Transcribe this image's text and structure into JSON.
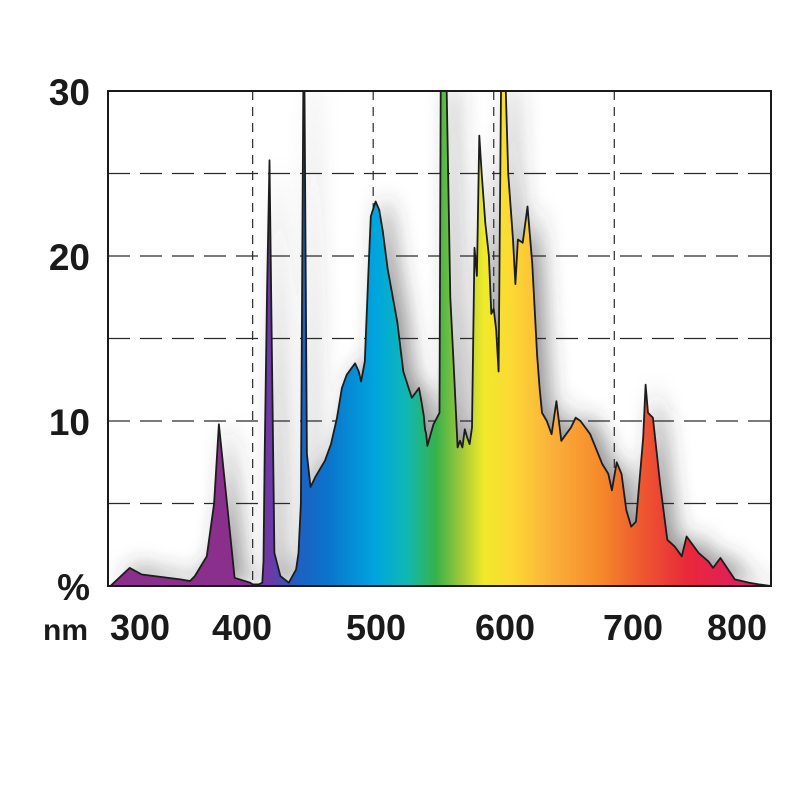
{
  "chart_data": {
    "type": "area",
    "title": "",
    "xlabel": "nm",
    "ylabel": "%",
    "xlim": [
      280,
      830
    ],
    "ylim": [
      0,
      30
    ],
    "grid": true,
    "x_ticks": [
      300,
      400,
      500,
      600,
      700,
      800
    ],
    "y_ticks": [
      10,
      20,
      30
    ],
    "x_gridlines": [
      400,
      500,
      600,
      700
    ],
    "y_gridlines": [
      5,
      10,
      15,
      20,
      25
    ],
    "series": [
      {
        "x": [
          282,
          298,
          308,
          340,
          348,
          352,
          362,
          368,
          372,
          385,
          398,
          400,
          402,
          405,
          408,
          409,
          410,
          412,
          414,
          418,
          423,
          430,
          436,
          438,
          440,
          441,
          442,
          443,
          445,
          448,
          452,
          460,
          465,
          470,
          474,
          478,
          482,
          485,
          488,
          490,
          493,
          496,
          498,
          502,
          505,
          508,
          512,
          520,
          525,
          532,
          538,
          540,
          542,
          543,
          544,
          545,
          550,
          555,
          556,
          558,
          561,
          564,
          567,
          570,
          572,
          574,
          576,
          578,
          580,
          582,
          584,
          586,
          588,
          590,
          593,
          596,
          598,
          600,
          602,
          604,
          606,
          608,
          610,
          612,
          614,
          616,
          618,
          620,
          624,
          628,
          632,
          636,
          638,
          640,
          644,
          648,
          652,
          656,
          660,
          664,
          668,
          672,
          676,
          680,
          690,
          695,
          698,
          702,
          706,
          710,
          714,
          718,
          722,
          724,
          726,
          728,
          732,
          738,
          744,
          750,
          756,
          760,
          770,
          778,
          782,
          788,
          800,
          812,
          820,
          830
        ],
        "values": [
          0,
          1.1,
          0.7,
          0.4,
          0.3,
          0.6,
          1.8,
          5.0,
          9.8,
          0.5,
          0.2,
          0.1,
          0.1,
          0.1,
          0.2,
          1.5,
          8.0,
          18.0,
          25.8,
          2.0,
          0.6,
          0.2,
          1.0,
          2.0,
          5.0,
          18.0,
          30.0,
          30.0,
          8.0,
          6.0,
          6.6,
          7.6,
          8.6,
          10.2,
          12.0,
          12.8,
          13.2,
          13.5,
          13.0,
          12.4,
          13.6,
          19.0,
          22.4,
          23.3,
          22.8,
          21.5,
          19.2,
          16.0,
          13.0,
          11.4,
          12.0,
          11.2,
          10.3,
          9.5,
          9.2,
          8.5,
          9.8,
          10.5,
          30.0,
          30.0,
          30.0,
          17.5,
          13.0,
          8.4,
          8.8,
          8.4,
          9.5,
          9.0,
          8.6,
          9.6,
          20.5,
          18.8,
          27.3,
          25.0,
          22.0,
          20.0,
          16.5,
          16.8,
          15.5,
          13.0,
          30.0,
          30.0,
          30.0,
          25.0,
          23.0,
          21.0,
          18.3,
          21.0,
          20.8,
          23.0,
          19.5,
          14.0,
          12.0,
          10.5,
          10.0,
          9.2,
          11.2,
          8.8,
          9.2,
          9.6,
          10.2,
          10.0,
          9.6,
          9.2,
          7.4,
          6.8,
          5.8,
          7.5,
          6.8,
          4.6,
          3.6,
          3.9,
          7.3,
          9.0,
          12.2,
          10.5,
          10.2,
          6.2,
          2.8,
          2.4,
          1.8,
          3.0,
          2.0,
          1.5,
          1.1,
          1.7,
          0.4,
          0.2,
          0.1,
          0
        ]
      }
    ]
  }
}
